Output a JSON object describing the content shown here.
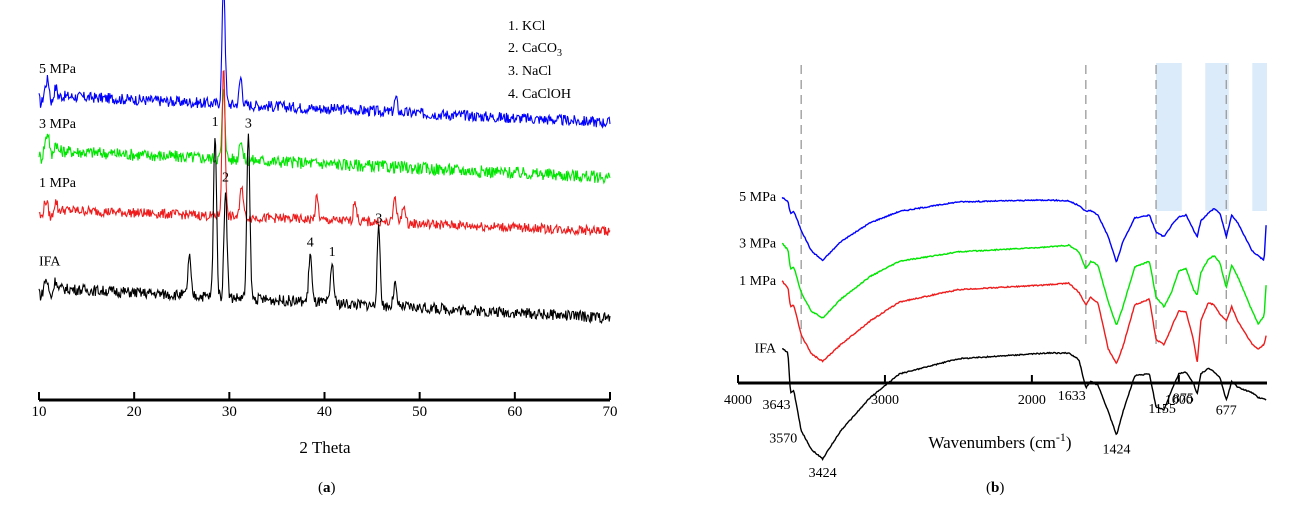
{
  "figure": {
    "label_a": "a",
    "label_b": "b"
  },
  "chart_data": [
    {
      "type": "line",
      "title": "",
      "xlabel": "2 Theta",
      "ylabel": "",
      "xlim": [
        10,
        70
      ],
      "xticks": [
        10,
        20,
        30,
        40,
        50,
        60,
        70
      ],
      "legend": {
        "placement": "top-right",
        "entries": [
          {
            "num": "1.",
            "name": "KCl",
            "sub": ""
          },
          {
            "num": "2.",
            "name": "CaCO",
            "sub": "3"
          },
          {
            "num": "3.",
            "name": "NaCl",
            "sub": ""
          },
          {
            "num": "4.",
            "name": "CaClOH",
            "sub": ""
          }
        ]
      },
      "series": [
        {
          "name": "5 MPa",
          "color": "#0000ff",
          "baseline": 1.0,
          "noise": 0.04,
          "slope": -0.1,
          "peaks": [
            [
              11,
              0.05
            ],
            [
              29.4,
              0.45
            ],
            [
              31.2,
              0.1
            ],
            [
              47.5,
              0.05
            ]
          ]
        },
        {
          "name": "3 MPa",
          "color": "#00e600",
          "baseline": 0.8,
          "noise": 0.045,
          "slope": -0.1,
          "peaks": [
            [
              11,
              0.06
            ],
            [
              29.4,
              0.25
            ],
            [
              31.2,
              0.08
            ]
          ]
        },
        {
          "name": "1 MPa",
          "color": "#ee1c1c",
          "baseline": 0.585,
          "noise": 0.035,
          "slope": -0.08,
          "peaks": [
            [
              29.4,
              0.55
            ],
            [
              31.3,
              0.12
            ],
            [
              39.2,
              0.08
            ],
            [
              43.2,
              0.08
            ],
            [
              47.4,
              0.1
            ],
            [
              48.3,
              0.07
            ]
          ]
        },
        {
          "name": "IFA",
          "color": "#000000",
          "baseline": 0.3,
          "noise": 0.04,
          "slope": -0.11,
          "peaks": [
            [
              25.8,
              0.14
            ],
            [
              28.5,
              0.6
            ],
            [
              29.6,
              0.4
            ],
            [
              32.0,
              0.6
            ],
            [
              38.5,
              0.18
            ],
            [
              40.8,
              0.15
            ],
            [
              45.7,
              0.28
            ],
            [
              47.4,
              0.08
            ]
          ]
        }
      ],
      "peak_labels": [
        {
          "x": 28.5,
          "text": "1"
        },
        {
          "x": 29.6,
          "text": "2"
        },
        {
          "x": 32.0,
          "text": "3"
        },
        {
          "x": 38.5,
          "text": "4"
        },
        {
          "x": 40.8,
          "text": "1"
        },
        {
          "x": 45.7,
          "text": "3"
        }
      ]
    },
    {
      "type": "line",
      "title": "",
      "xlabel": "Wavenumbers (cm",
      "xlabel_sup": "-1",
      "xlabel_end": ")",
      "ylabel": "",
      "xlim": [
        4000,
        400
      ],
      "xticks": [
        4000,
        3000,
        2000,
        1000
      ],
      "series": [
        {
          "name": "5 MPa",
          "color": "#0000ff",
          "offset": 1.22,
          "points": [
            [
              3700,
              0.97
            ],
            [
              3660,
              0.92
            ],
            [
              3643,
              0.8
            ],
            [
              3620,
              0.82
            ],
            [
              3570,
              0.62
            ],
            [
              3500,
              0.4
            ],
            [
              3424,
              0.3
            ],
            [
              3300,
              0.5
            ],
            [
              3100,
              0.7
            ],
            [
              2900,
              0.82
            ],
            [
              2500,
              0.92
            ],
            [
              1900,
              0.94
            ],
            [
              1750,
              0.93
            ],
            [
              1680,
              0.88
            ],
            [
              1633,
              0.82
            ],
            [
              1600,
              0.83
            ],
            [
              1550,
              0.78
            ],
            [
              1480,
              0.55
            ],
            [
              1424,
              0.28
            ],
            [
              1380,
              0.5
            ],
            [
              1300,
              0.75
            ],
            [
              1200,
              0.78
            ],
            [
              1155,
              0.6
            ],
            [
              1100,
              0.55
            ],
            [
              1050,
              0.67
            ],
            [
              1000,
              0.76
            ],
            [
              950,
              0.78
            ],
            [
              900,
              0.62
            ],
            [
              875,
              0.55
            ],
            [
              850,
              0.72
            ],
            [
              800,
              0.8
            ],
            [
              760,
              0.85
            ],
            [
              720,
              0.8
            ],
            [
              677,
              0.55
            ],
            [
              640,
              0.78
            ],
            [
              600,
              0.7
            ],
            [
              500,
              0.4
            ],
            [
              460,
              0.35
            ],
            [
              420,
              0.3
            ],
            [
              405,
              0.7
            ]
          ]
        },
        {
          "name": "3 MPa",
          "color": "#00e600",
          "offset": 1.0,
          "points": [
            [
              3700,
              0.97
            ],
            [
              3660,
              0.9
            ],
            [
              3643,
              0.7
            ],
            [
              3620,
              0.72
            ],
            [
              3570,
              0.45
            ],
            [
              3500,
              0.25
            ],
            [
              3424,
              0.18
            ],
            [
              3300,
              0.38
            ],
            [
              3100,
              0.62
            ],
            [
              2900,
              0.78
            ],
            [
              2500,
              0.88
            ],
            [
              1900,
              0.93
            ],
            [
              1750,
              0.95
            ],
            [
              1680,
              0.88
            ],
            [
              1633,
              0.7
            ],
            [
              1600,
              0.78
            ],
            [
              1550,
              0.74
            ],
            [
              1480,
              0.35
            ],
            [
              1424,
              0.1
            ],
            [
              1380,
              0.3
            ],
            [
              1300,
              0.72
            ],
            [
              1200,
              0.78
            ],
            [
              1155,
              0.4
            ],
            [
              1100,
              0.3
            ],
            [
              1050,
              0.45
            ],
            [
              1000,
              0.68
            ],
            [
              950,
              0.7
            ],
            [
              900,
              0.48
            ],
            [
              875,
              0.42
            ],
            [
              850,
              0.66
            ],
            [
              800,
              0.8
            ],
            [
              760,
              0.84
            ],
            [
              720,
              0.76
            ],
            [
              677,
              0.5
            ],
            [
              640,
              0.74
            ],
            [
              600,
              0.62
            ],
            [
              500,
              0.25
            ],
            [
              460,
              0.12
            ],
            [
              420,
              0.2
            ],
            [
              405,
              0.55
            ]
          ]
        },
        {
          "name": "1 MPa",
          "color": "#ee1c1c",
          "offset": 0.82,
          "points": [
            [
              3700,
              0.97
            ],
            [
              3660,
              0.9
            ],
            [
              3643,
              0.7
            ],
            [
              3620,
              0.72
            ],
            [
              3570,
              0.4
            ],
            [
              3500,
              0.2
            ],
            [
              3424,
              0.12
            ],
            [
              3300,
              0.3
            ],
            [
              3100,
              0.55
            ],
            [
              2900,
              0.75
            ],
            [
              2500,
              0.88
            ],
            [
              1900,
              0.93
            ],
            [
              1750,
              0.95
            ],
            [
              1680,
              0.85
            ],
            [
              1633,
              0.72
            ],
            [
              1600,
              0.8
            ],
            [
              1550,
              0.74
            ],
            [
              1480,
              0.25
            ],
            [
              1424,
              0.1
            ],
            [
              1380,
              0.28
            ],
            [
              1300,
              0.72
            ],
            [
              1200,
              0.78
            ],
            [
              1155,
              0.35
            ],
            [
              1100,
              0.3
            ],
            [
              1050,
              0.48
            ],
            [
              1000,
              0.66
            ],
            [
              950,
              0.64
            ],
            [
              900,
              0.35
            ],
            [
              875,
              0.1
            ],
            [
              850,
              0.55
            ],
            [
              800,
              0.74
            ],
            [
              760,
              0.72
            ],
            [
              720,
              0.62
            ],
            [
              677,
              0.55
            ],
            [
              640,
              0.7
            ],
            [
              600,
              0.55
            ],
            [
              500,
              0.3
            ],
            [
              460,
              0.25
            ],
            [
              420,
              0.3
            ],
            [
              405,
              0.4
            ]
          ]
        },
        {
          "name": "IFA",
          "color": "#000000",
          "offset": 0.5,
          "points": [
            [
              3700,
              0.97
            ],
            [
              3660,
              0.92
            ],
            [
              3643,
              0.5
            ],
            [
              3620,
              0.52
            ],
            [
              3570,
              0.1
            ],
            [
              3500,
              -0.1
            ],
            [
              3424,
              -0.2
            ],
            [
              3300,
              0.1
            ],
            [
              3100,
              0.45
            ],
            [
              2900,
              0.7
            ],
            [
              2500,
              0.86
            ],
            [
              1900,
              0.92
            ],
            [
              1750,
              0.92
            ],
            [
              1680,
              0.85
            ],
            [
              1633,
              0.55
            ],
            [
              1600,
              0.62
            ],
            [
              1550,
              0.58
            ],
            [
              1480,
              0.3
            ],
            [
              1424,
              0.05
            ],
            [
              1380,
              0.3
            ],
            [
              1300,
              0.68
            ],
            [
              1200,
              0.7
            ],
            [
              1155,
              0.35
            ],
            [
              1100,
              0.32
            ],
            [
              1050,
              0.52
            ],
            [
              1000,
              0.7
            ],
            [
              950,
              0.72
            ],
            [
              900,
              0.6
            ],
            [
              875,
              0.48
            ],
            [
              850,
              0.7
            ],
            [
              800,
              0.76
            ],
            [
              760,
              0.72
            ],
            [
              720,
              0.66
            ],
            [
              677,
              0.42
            ],
            [
              640,
              0.62
            ],
            [
              600,
              0.56
            ],
            [
              500,
              0.5
            ],
            [
              460,
              0.45
            ],
            [
              420,
              0.44
            ],
            [
              405,
              0.42
            ]
          ]
        }
      ],
      "vlines": [
        3570,
        1633,
        1155,
        677
      ],
      "bands": [
        [
          1155,
          980
        ],
        [
          820,
          660
        ],
        [
          500,
          400
        ]
      ],
      "peak_labels": [
        {
          "x": 3643,
          "text": "3643"
        },
        {
          "x": 3570,
          "text": "3570"
        },
        {
          "x": 3424,
          "text": "3424"
        },
        {
          "x": 1633,
          "text": "1633"
        },
        {
          "x": 1424,
          "text": "1424"
        },
        {
          "x": 1155,
          "text": "1155"
        },
        {
          "x": 875,
          "text": "875"
        },
        {
          "x": 677,
          "text": "677"
        }
      ]
    }
  ]
}
